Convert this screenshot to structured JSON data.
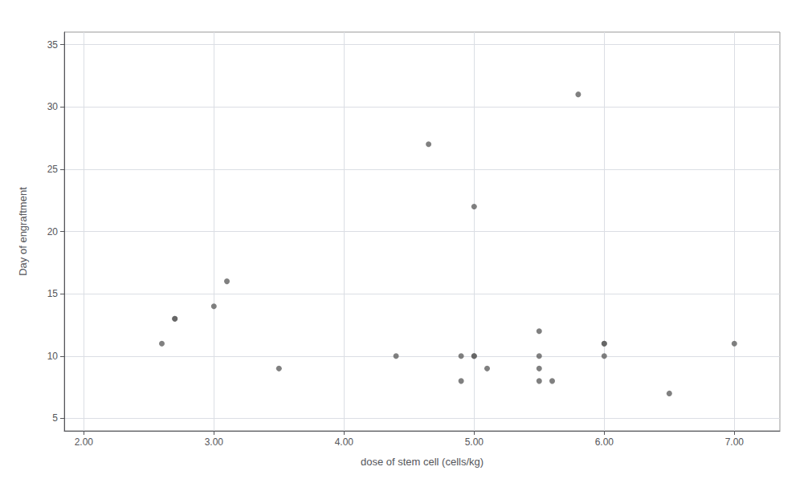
{
  "chart_data": {
    "type": "scatter",
    "x": [
      2.6,
      2.7,
      2.7,
      3.0,
      3.1,
      3.5,
      4.4,
      4.65,
      4.9,
      4.9,
      5.0,
      5.0,
      5.0,
      5.1,
      5.5,
      5.5,
      5.5,
      5.5,
      5.6,
      5.8,
      6.0,
      6.0,
      6.0,
      6.5,
      7.0
    ],
    "values": [
      11,
      13,
      13,
      14,
      16,
      9,
      10,
      27,
      8,
      10,
      10,
      10,
      22,
      9,
      12,
      9,
      8,
      10,
      8,
      31,
      11,
      11,
      10,
      7,
      11
    ],
    "xlabel": "dose of stem cell (cells/kg)",
    "ylabel": "Day of engraftment",
    "xlim": [
      1.85,
      7.35
    ],
    "ylim": [
      4,
      36
    ],
    "xticks": [
      {
        "value": 2,
        "label": "2.00"
      },
      {
        "value": 3,
        "label": "3.00"
      },
      {
        "value": 4,
        "label": "4.00"
      },
      {
        "value": 5,
        "label": "5.00"
      },
      {
        "value": 6,
        "label": "6.00"
      },
      {
        "value": 7,
        "label": "7.00"
      }
    ],
    "yticks": [
      5,
      10,
      15,
      20,
      25,
      30,
      35
    ],
    "color": "#606060",
    "grid": true
  }
}
